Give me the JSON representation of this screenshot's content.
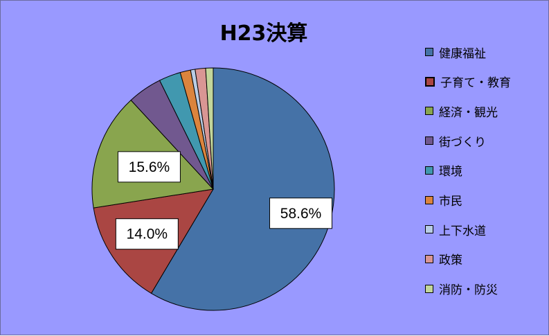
{
  "chart_data": {
    "type": "pie",
    "title": "H23決算",
    "categories": [
      "健康福祉",
      "子育て・教育",
      "経済・観光",
      "街づくり",
      "環境",
      "市民",
      "上下水道",
      "政策",
      "消防・防災"
    ],
    "values": [
      58.6,
      14.0,
      15.6,
      4.6,
      2.9,
      1.4,
      0.6,
      1.4,
      1.0
    ],
    "data_labels": [
      "58.6%",
      "14.0%",
      "15.6%",
      "",
      "",
      "",
      "",
      "",
      ""
    ],
    "colors": [
      "#4572a7",
      "#aa4643",
      "#89a54e",
      "#71588f",
      "#4198af",
      "#db843d",
      "#b9cde5",
      "#d99694",
      "#c3d69b"
    ],
    "legend_position": "right",
    "background_color": "#9999ff"
  }
}
